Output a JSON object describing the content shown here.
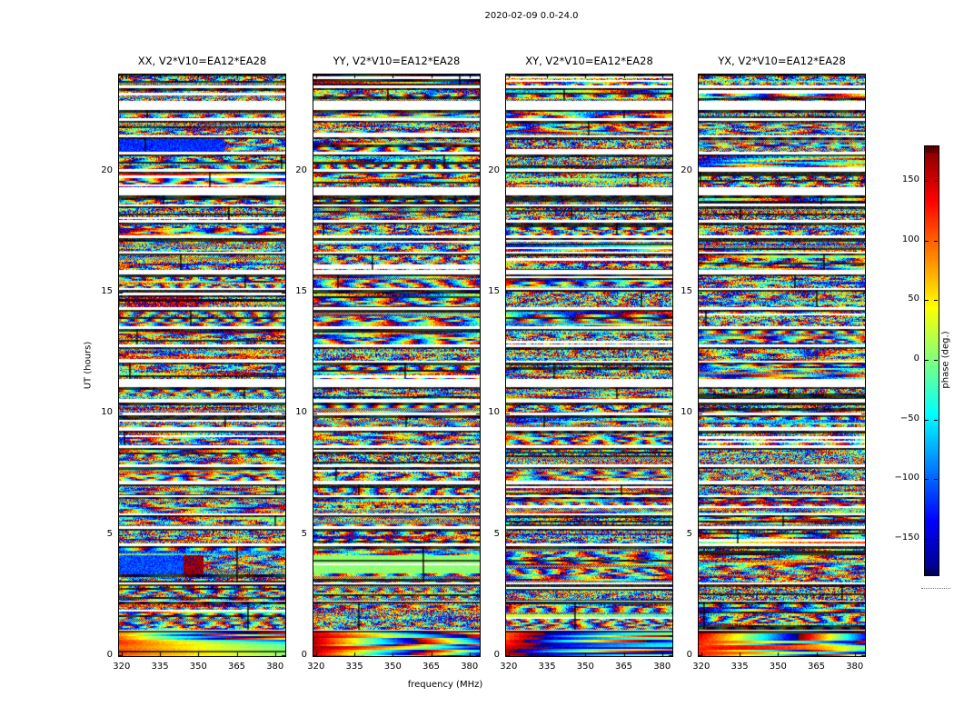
{
  "figure": {
    "suptitle": "2020-02-09 0.0-24.0",
    "background_color": "#ffffff"
  },
  "chart_data": {
    "type": "heatmap",
    "title": "2020-02-09 0.0-24.0",
    "xlabel": "frequency (MHz)",
    "ylabel": "UT (hours)",
    "x_range_mhz": [
      319,
      384
    ],
    "x_ticks": [
      320,
      335,
      350,
      365,
      380
    ],
    "y_range_hours": [
      0,
      24
    ],
    "y_ticks": [
      0,
      5,
      10,
      15,
      20
    ],
    "grid": false,
    "panels": [
      {
        "id": "xx",
        "title": "XX, V2*V10=EA12*EA28"
      },
      {
        "id": "yy",
        "title": "YY, V2*V10=EA12*EA28"
      },
      {
        "id": "xy",
        "title": "XY, V2*V10=EA12*EA28"
      },
      {
        "id": "yx",
        "title": "YX, V2*V10=EA12*EA28"
      }
    ],
    "colorbar": {
      "label": "phase (deg.)",
      "min": -180,
      "max": 180,
      "ticks": [
        -150,
        -100,
        -50,
        0,
        50,
        100,
        150
      ],
      "colormap": "jet",
      "position": "right"
    },
    "scans_ut_hours": [
      [
        0,
        1.05
      ],
      [
        1.1,
        2.25
      ],
      [
        2.3,
        2.95
      ],
      [
        3.05,
        4.55
      ],
      [
        4.65,
        5.25
      ],
      [
        5.35,
        5.8
      ],
      [
        5.9,
        6.55
      ],
      [
        6.65,
        7.1
      ],
      [
        7.25,
        7.8
      ],
      [
        7.9,
        8.6
      ],
      [
        8.7,
        9.3
      ],
      [
        9.45,
        9.95
      ],
      [
        10.05,
        10.45
      ],
      [
        10.6,
        11.1
      ],
      [
        11.45,
        12.1
      ],
      [
        12.2,
        12.75
      ],
      [
        12.85,
        13.5
      ],
      [
        13.6,
        14.3
      ],
      [
        14.4,
        15.1
      ],
      [
        15.2,
        15.75
      ],
      [
        15.95,
        16.6
      ],
      [
        16.7,
        17.25
      ],
      [
        17.35,
        17.9
      ],
      [
        18.0,
        18.55
      ],
      [
        18.65,
        19.0
      ],
      [
        19.35,
        20.0
      ],
      [
        20.1,
        20.7
      ],
      [
        20.8,
        21.4
      ],
      [
        21.5,
        22.1
      ],
      [
        22.2,
        22.55
      ],
      [
        22.9,
        23.45
      ],
      [
        23.55,
        24.0
      ]
    ],
    "smooth_scans": [
      0
    ],
    "features": {
      "xx": [
        {
          "t": [
            3.4,
            4.15
          ],
          "f": [
            319,
            352
          ],
          "phase": -110,
          "noise": 30
        },
        {
          "t": [
            3.4,
            4.15
          ],
          "f": [
            344,
            352
          ],
          "phase": 170,
          "noise": 20
        },
        {
          "t": [
            14.4,
            15.05
          ],
          "f": [
            322,
            350
          ],
          "phase": 160,
          "noise": 75
        },
        {
          "t": [
            20.8,
            21.3
          ],
          "f": [
            319,
            360
          ],
          "phase": -120,
          "noise": 25
        }
      ],
      "yy": [
        {
          "t": [
            3.4,
            4.15
          ],
          "f": [
            319,
            384
          ],
          "phase": 5,
          "noise": 14
        }
      ],
      "xy": [],
      "yx": []
    },
    "data_nature": "Noise-like interferometric visibility phases in degrees (range -180 to 180) versus frequency (x) and UT time (y); white horizontal bands are gaps between scans; occasional dark rows/columns are flagged data."
  }
}
